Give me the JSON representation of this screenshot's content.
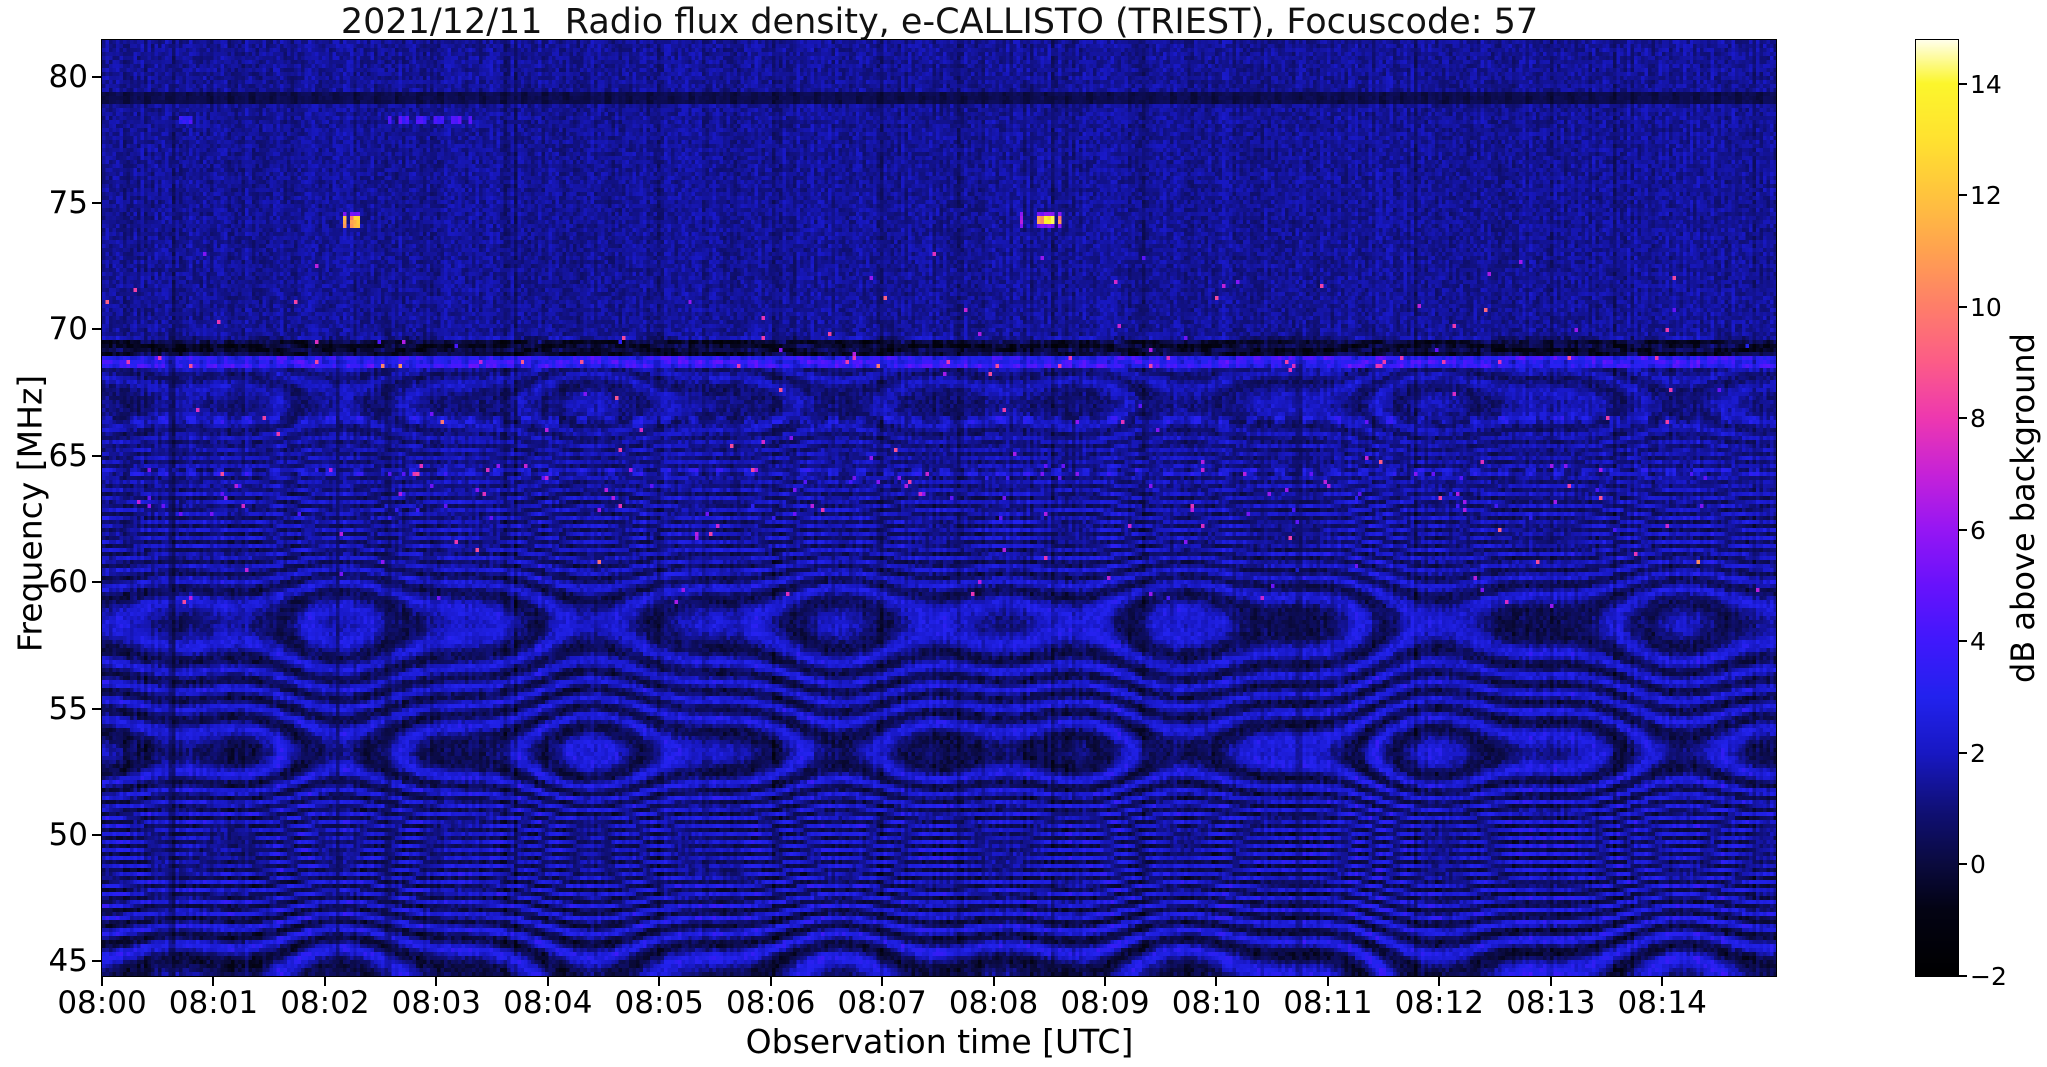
{
  "figure": {
    "title": "2021/12/11  Radio flux density, e-CALLISTO (TRIEST), Focuscode: 57",
    "xlabel": "Observation time [UTC]",
    "ylabel": "Frequency [MHz]",
    "colorbar_label": "dB above background"
  },
  "axes": {
    "x_tick_labels": [
      "08:00",
      "08:01",
      "08:02",
      "08:03",
      "08:04",
      "08:05",
      "08:06",
      "08:07",
      "08:08",
      "08:09",
      "08:10",
      "08:11",
      "08:12",
      "08:13",
      "08:14"
    ],
    "x_tick_minutes": [
      0,
      1,
      2,
      3,
      4,
      5,
      6,
      7,
      8,
      9,
      10,
      11,
      12,
      13,
      14
    ],
    "x_range_minutes": [
      0,
      15.03
    ],
    "y_tick_labels": [
      "80",
      "75",
      "70",
      "65",
      "60",
      "55",
      "50",
      "45"
    ],
    "y_tick_values": [
      80,
      75,
      70,
      65,
      60,
      55,
      50,
      45
    ],
    "y_range_mhz": [
      44.42,
      81.45
    ],
    "colorbar_tick_labels": [
      "14",
      "12",
      "10",
      "8",
      "6",
      "4",
      "2",
      "0",
      "−2"
    ],
    "colorbar_tick_values": [
      14,
      12,
      10,
      8,
      6,
      4,
      2,
      0,
      -2
    ],
    "colorbar_range_db": [
      -2,
      14.78
    ]
  },
  "chart_data": {
    "type": "heatmap",
    "title": "2021/12/11  Radio flux density, e-CALLISTO (TRIEST), Focuscode: 57",
    "xlabel": "Observation time [UTC]",
    "ylabel": "Frequency [MHz]",
    "value_label": "dB above background",
    "x_start_utc": "08:00",
    "x_end_utc": "08:15",
    "x_range_minutes": [
      0,
      15.03
    ],
    "y_range_mhz": [
      44.42,
      81.45
    ],
    "value_range_db": [
      -2,
      15
    ],
    "grid": false,
    "legend": "colorbar-right",
    "colormap": {
      "name": "gnuplot2-like (black-blue-magenta-orange-yellow-white)",
      "stops": [
        [
          -2,
          0,
          0,
          0
        ],
        [
          -0.8,
          3,
          3,
          20
        ],
        [
          0,
          10,
          10,
          62
        ],
        [
          1,
          16,
          16,
          120
        ],
        [
          2,
          24,
          24,
          196
        ],
        [
          3,
          34,
          34,
          238
        ],
        [
          4,
          64,
          24,
          252
        ],
        [
          5,
          104,
          18,
          252
        ],
        [
          6,
          150,
          22,
          244
        ],
        [
          7,
          198,
          34,
          216
        ],
        [
          8,
          238,
          56,
          176
        ],
        [
          9,
          252,
          92,
          136
        ],
        [
          10,
          254,
          126,
          106
        ],
        [
          11,
          255,
          162,
          80
        ],
        [
          12,
          255,
          196,
          62
        ],
        [
          13,
          255,
          226,
          48
        ],
        [
          14,
          252,
          246,
          44
        ],
        [
          14.78,
          255,
          255,
          235
        ]
      ]
    },
    "background_db": 1.3,
    "bands": {
      "description": "wavy horizontal interference fringes below ~69.7 MHz, strongest below ~63 MHz, spacing ~1 MHz, undulating in time",
      "spacing_mhz": 1.03,
      "spacing_mod": 0.1,
      "wobble": [
        {
          "period_min": 3.9,
          "amp_mhz": 0.65,
          "phase": 0.8
        },
        {
          "period_min": 1.5,
          "amp_mhz": 0.3,
          "phase": 2.1
        },
        {
          "period_min": 7.8,
          "amp_mhz": 0.55,
          "phase": 4.0
        }
      ],
      "amp_zero_above_mhz": 69.7,
      "amp_mid": 0.42,
      "amp_mid_above_mhz": 63.5,
      "amp_base": 0.62,
      "amp_slope_per_mhz": 0.021
    },
    "features": [
      {
        "kind": "hline_bright",
        "label": "bright carrier line",
        "f0": 68.55,
        "f1": 69.0,
        "boost": 1.7,
        "dash": [
          5,
          3,
          0.7
        ],
        "pink_prob": 0.02,
        "pink_boost": 4.5
      },
      {
        "kind": "hline_dark",
        "label": "dark absorption band",
        "f0": 69.0,
        "f1": 69.55,
        "drop": 1.35,
        "dash": [
          7,
          3,
          0.5
        ]
      },
      {
        "kind": "hline_dotted",
        "label": "dotted line 66.3 MHz",
        "f0": 66.2,
        "f1": 66.5,
        "boost": 1.0,
        "dash": [
          8,
          3
        ]
      },
      {
        "kind": "hline_dotted",
        "label": "dotted line 64.3 MHz",
        "f0": 64.2,
        "f1": 64.5,
        "boost": 1.15,
        "dash": [
          8,
          3
        ]
      },
      {
        "kind": "hline_dark2",
        "label": "dark stripe 79.2 MHz",
        "f0": 78.95,
        "f1": 79.45,
        "scale": 0.35
      },
      {
        "kind": "dash_segment",
        "label": "light-blue dashes 78.2 MHz @08:02.6-08:03.3",
        "f0": 78.05,
        "f1": 78.45,
        "m0": 2.58,
        "m1": 3.32,
        "boost": 2.9,
        "dash": [
          5,
          3
        ]
      },
      {
        "kind": "dash_segment",
        "label": "small dash 78.2 MHz @08:00.7",
        "f0": 78.05,
        "f1": 78.4,
        "m0": 0.7,
        "m1": 0.8,
        "boost": 2.3,
        "dash": [
          5,
          5
        ]
      },
      {
        "kind": "vlane",
        "label": "dark column",
        "m0": 0.58,
        "m1": 0.66,
        "scale": 0.55
      },
      {
        "kind": "vlane",
        "label": "dark column",
        "m0": 2.1,
        "m1": 2.14,
        "scale": 0.5
      },
      {
        "kind": "vlane",
        "label": "dark column",
        "m0": 2.55,
        "m1": 2.6,
        "scale": 0.6
      },
      {
        "kind": "vlane",
        "label": "dark column",
        "m0": 10.72,
        "m1": 10.78,
        "scale": 0.55
      }
    ],
    "bursts": [
      {
        "kind": "burst",
        "label": "RFI burst ~74.3 MHz @08:02.2",
        "f0": 73.95,
        "f1": 74.65,
        "core_f0": 74.05,
        "core_f1": 74.5,
        "fringe_db": 5.0,
        "segments": [
          [
            2.145,
            2.185,
            10.5
          ],
          [
            2.21,
            2.25,
            9.8
          ],
          [
            2.27,
            2.305,
            11.2
          ]
        ]
      },
      {
        "kind": "burst",
        "label": "RFI burst ~74.3 MHz @08:08.5",
        "f0": 73.95,
        "f1": 74.65,
        "core_f0": 74.1,
        "core_f1": 74.5,
        "fringe_db": 5.0,
        "segments": [
          [
            8.23,
            8.26,
            6.0
          ],
          [
            8.4,
            8.445,
            10.0
          ],
          [
            8.455,
            8.56,
            12.8
          ],
          [
            8.57,
            8.61,
            9.5
          ]
        ]
      }
    ],
    "noise": {
      "cell_noise_db": 1.1,
      "column_streaks": true,
      "speckle": [
        {
          "prob": 0.0035,
          "f0": 59,
          "f1": 73,
          "min_db": 3.5,
          "max_db": 7.5,
          "label": "magenta speckles"
        },
        {
          "prob": 0.012,
          "f0": 62.5,
          "f1": 64.6,
          "min_db": 2.5,
          "max_db": 6.0,
          "label": "dense speckles near 63-64.5 MHz"
        }
      ]
    }
  }
}
